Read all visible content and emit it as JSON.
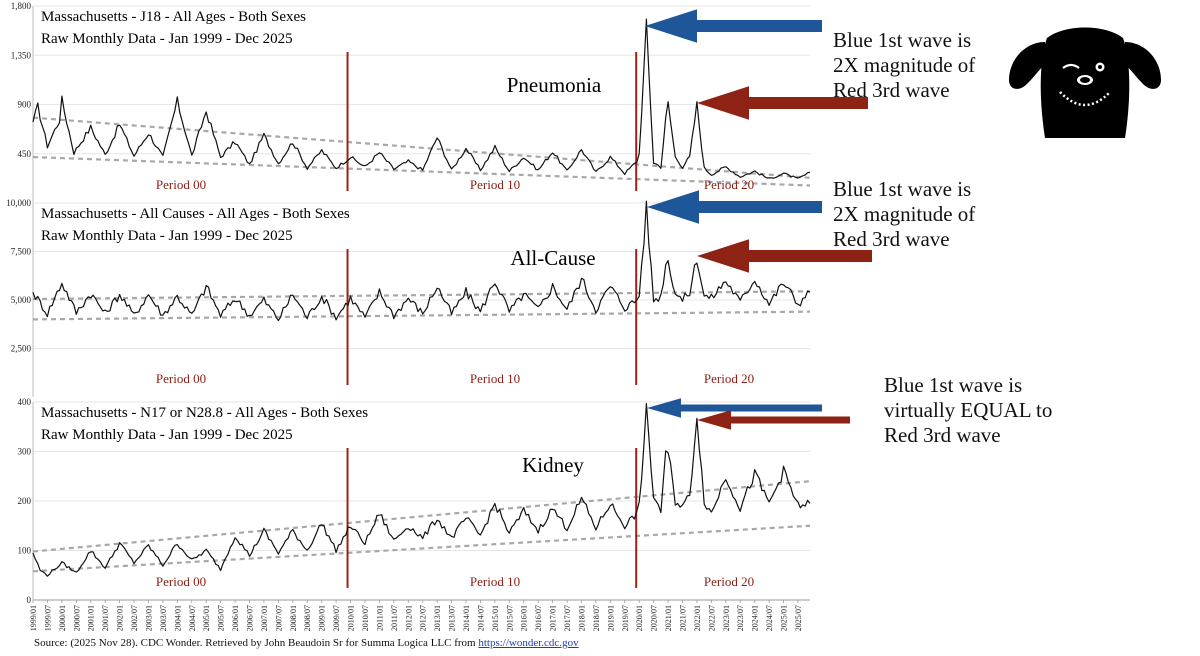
{
  "colors": {
    "series": "#111111",
    "trend": "#a8a8a8",
    "period_line": "#9b2316",
    "period_label": "#8b1e13",
    "grid": "#e6e6e6",
    "arrow_blue": "#1f5699",
    "arrow_red": "#8e2214"
  },
  "source": {
    "prefix": "Source: (2025 Nov 28). CDC Wonder. Retrieved by John Beaudoin Sr for Summa Logica LLC from ",
    "link": "https://wonder.cdc.gov"
  },
  "mascot": {
    "icon": "dog-face-icon"
  },
  "chart_data": [
    {
      "type": "line",
      "title": "Massachusetts - J18 - All Ages - Both Sexes",
      "subtitle": "Raw Monthly Data - Jan 1999 - Dec 2025",
      "label": "Pneumonia",
      "ylim": [
        0,
        1800
      ],
      "yticks": [
        "1,800",
        "1,350",
        "900",
        "450"
      ],
      "grid": true,
      "period_labels": [
        "Period 00",
        "Period 10",
        "Period 20"
      ],
      "period_boundaries": [
        "2010/01",
        "2020/01"
      ],
      "trend_lines": [
        {
          "from": [
            "1999/01",
            780
          ],
          "to": [
            "2025/12",
            230
          ]
        },
        {
          "from": [
            "1999/01",
            420
          ],
          "to": [
            "2025/12",
            160
          ]
        }
      ],
      "anchors": [
        [
          "1999/01",
          740
        ],
        [
          "1999/03",
          880
        ],
        [
          "1999/07",
          520
        ],
        [
          "1999/12",
          760
        ],
        [
          "2000/01",
          940
        ],
        [
          "2000/06",
          460
        ],
        [
          "2001/01",
          690
        ],
        [
          "2001/07",
          440
        ],
        [
          "2002/01",
          720
        ],
        [
          "2002/07",
          430
        ],
        [
          "2003/01",
          640
        ],
        [
          "2003/07",
          420
        ],
        [
          "2004/01",
          930
        ],
        [
          "2004/07",
          430
        ],
        [
          "2005/01",
          840
        ],
        [
          "2005/07",
          420
        ],
        [
          "2006/01",
          560
        ],
        [
          "2006/07",
          350
        ],
        [
          "2007/01",
          620
        ],
        [
          "2007/07",
          360
        ],
        [
          "2008/01",
          560
        ],
        [
          "2008/07",
          320
        ],
        [
          "2009/01",
          480
        ],
        [
          "2009/07",
          320
        ],
        [
          "2010/01",
          420
        ],
        [
          "2010/07",
          330
        ],
        [
          "2011/01",
          460
        ],
        [
          "2011/07",
          310
        ],
        [
          "2012/01",
          380
        ],
        [
          "2012/07",
          300
        ],
        [
          "2013/01",
          600
        ],
        [
          "2013/07",
          300
        ],
        [
          "2014/01",
          500
        ],
        [
          "2014/07",
          300
        ],
        [
          "2015/01",
          510
        ],
        [
          "2015/07",
          290
        ],
        [
          "2016/01",
          420
        ],
        [
          "2016/07",
          300
        ],
        [
          "2017/01",
          470
        ],
        [
          "2017/07",
          290
        ],
        [
          "2018/01",
          490
        ],
        [
          "2018/07",
          280
        ],
        [
          "2019/01",
          420
        ],
        [
          "2019/07",
          270
        ],
        [
          "2019/12",
          380
        ],
        [
          "2020/01",
          450
        ],
        [
          "2020/04",
          1620
        ],
        [
          "2020/07",
          370
        ],
        [
          "2020/10",
          330
        ],
        [
          "2020/12",
          760
        ],
        [
          "2021/01",
          910
        ],
        [
          "2021/04",
          420
        ],
        [
          "2021/07",
          330
        ],
        [
          "2021/10",
          420
        ],
        [
          "2022/01",
          900
        ],
        [
          "2022/04",
          320
        ],
        [
          "2022/07",
          260
        ],
        [
          "2023/01",
          330
        ],
        [
          "2023/07",
          240
        ],
        [
          "2024/01",
          290
        ],
        [
          "2024/07",
          220
        ],
        [
          "2025/01",
          270
        ],
        [
          "2025/07",
          220
        ],
        [
          "2025/12",
          280
        ]
      ]
    },
    {
      "type": "line",
      "title": "Massachusetts - All Causes - All Ages - Both Sexes",
      "subtitle": "Raw Monthly Data - Jan 1999 - Dec 2025",
      "label": "All-Cause",
      "ylim": [
        0,
        10000
      ],
      "yticks": [
        "10,000",
        "7,500",
        "5,000",
        "2,500"
      ],
      "grid": true,
      "period_labels": [
        "Period 00",
        "Period 10",
        "Period 20"
      ],
      "period_boundaries": [
        "2010/01",
        "2020/01"
      ],
      "trend_lines": [
        {
          "from": [
            "1999/01",
            5050
          ],
          "to": [
            "2025/12",
            5450
          ]
        },
        {
          "from": [
            "1999/01",
            4000
          ],
          "to": [
            "2025/12",
            4400
          ]
        }
      ],
      "anchors": [
        [
          "1999/01",
          5400
        ],
        [
          "1999/07",
          4300
        ],
        [
          "2000/01",
          5900
        ],
        [
          "2000/07",
          4350
        ],
        [
          "2001/01",
          5350
        ],
        [
          "2001/07",
          4300
        ],
        [
          "2002/01",
          5300
        ],
        [
          "2002/07",
          4200
        ],
        [
          "2003/01",
          5300
        ],
        [
          "2003/07",
          4200
        ],
        [
          "2004/01",
          5200
        ],
        [
          "2004/07",
          4200
        ],
        [
          "2005/01",
          5700
        ],
        [
          "2005/07",
          4200
        ],
        [
          "2006/01",
          5100
        ],
        [
          "2006/07",
          4200
        ],
        [
          "2007/01",
          5000
        ],
        [
          "2007/07",
          4000
        ],
        [
          "2008/01",
          5300
        ],
        [
          "2008/07",
          4100
        ],
        [
          "2009/01",
          5200
        ],
        [
          "2009/07",
          4100
        ],
        [
          "2010/01",
          5100
        ],
        [
          "2010/07",
          4100
        ],
        [
          "2011/01",
          5400
        ],
        [
          "2011/07",
          4200
        ],
        [
          "2012/01",
          5100
        ],
        [
          "2012/07",
          4300
        ],
        [
          "2013/01",
          5700
        ],
        [
          "2013/07",
          4300
        ],
        [
          "2014/01",
          5400
        ],
        [
          "2014/07",
          4400
        ],
        [
          "2015/01",
          6000
        ],
        [
          "2015/07",
          4400
        ],
        [
          "2016/01",
          5300
        ],
        [
          "2016/07",
          4500
        ],
        [
          "2017/01",
          5700
        ],
        [
          "2017/07",
          4500
        ],
        [
          "2018/01",
          6100
        ],
        [
          "2018/07",
          4500
        ],
        [
          "2019/01",
          5700
        ],
        [
          "2019/07",
          4600
        ],
        [
          "2019/12",
          5000
        ],
        [
          "2020/01",
          5300
        ],
        [
          "2020/04",
          9700
        ],
        [
          "2020/07",
          5000
        ],
        [
          "2020/10",
          5200
        ],
        [
          "2020/12",
          6900
        ],
        [
          "2021/01",
          7000
        ],
        [
          "2021/04",
          5400
        ],
        [
          "2021/07",
          5000
        ],
        [
          "2021/10",
          5400
        ],
        [
          "2022/01",
          7200
        ],
        [
          "2022/04",
          5200
        ],
        [
          "2022/07",
          5100
        ],
        [
          "2023/01",
          6000
        ],
        [
          "2023/07",
          4900
        ],
        [
          "2024/01",
          6100
        ],
        [
          "2024/07",
          4800
        ],
        [
          "2025/01",
          5900
        ],
        [
          "2025/07",
          4800
        ],
        [
          "2025/12",
          5400
        ]
      ]
    },
    {
      "type": "line",
      "title": "Massachusetts - N17 or N28.8 - All Ages - Both Sexes",
      "subtitle": "Raw Monthly Data - Jan 1999 - Dec 2025",
      "label": "Kidney",
      "ylim": [
        0,
        400
      ],
      "yticks": [
        "400",
        "300",
        "200",
        "100",
        "0"
      ],
      "grid": true,
      "period_labels": [
        "Period 00",
        "Period 10",
        "Period 20"
      ],
      "period_boundaries": [
        "2010/01",
        "2020/01"
      ],
      "trend_lines": [
        {
          "from": [
            "1999/01",
            98
          ],
          "to": [
            "2025/12",
            240
          ]
        },
        {
          "from": [
            "1999/01",
            58
          ],
          "to": [
            "2025/12",
            150
          ]
        }
      ],
      "anchors": [
        [
          "1999/01",
          95
        ],
        [
          "1999/04",
          60
        ],
        [
          "1999/07",
          50
        ],
        [
          "2000/01",
          75
        ],
        [
          "2000/07",
          55
        ],
        [
          "2001/01",
          100
        ],
        [
          "2001/07",
          65
        ],
        [
          "2002/01",
          115
        ],
        [
          "2002/07",
          75
        ],
        [
          "2003/01",
          110
        ],
        [
          "2003/07",
          70
        ],
        [
          "2004/01",
          115
        ],
        [
          "2004/07",
          80
        ],
        [
          "2005/01",
          100
        ],
        [
          "2005/07",
          62
        ],
        [
          "2006/01",
          130
        ],
        [
          "2006/07",
          90
        ],
        [
          "2007/01",
          140
        ],
        [
          "2007/07",
          95
        ],
        [
          "2008/01",
          140
        ],
        [
          "2008/07",
          100
        ],
        [
          "2009/01",
          155
        ],
        [
          "2009/07",
          100
        ],
        [
          "2010/01",
          150
        ],
        [
          "2010/07",
          115
        ],
        [
          "2011/01",
          175
        ],
        [
          "2011/07",
          120
        ],
        [
          "2012/01",
          150
        ],
        [
          "2012/07",
          125
        ],
        [
          "2013/01",
          165
        ],
        [
          "2013/07",
          125
        ],
        [
          "2014/01",
          165
        ],
        [
          "2014/07",
          130
        ],
        [
          "2015/01",
          195
        ],
        [
          "2015/07",
          135
        ],
        [
          "2016/01",
          180
        ],
        [
          "2016/07",
          140
        ],
        [
          "2017/01",
          185
        ],
        [
          "2017/07",
          145
        ],
        [
          "2018/01",
          205
        ],
        [
          "2018/07",
          145
        ],
        [
          "2019/01",
          195
        ],
        [
          "2019/07",
          150
        ],
        [
          "2019/12",
          175
        ],
        [
          "2020/01",
          190
        ],
        [
          "2020/04",
          380
        ],
        [
          "2020/07",
          210
        ],
        [
          "2020/10",
          180
        ],
        [
          "2020/12",
          290
        ],
        [
          "2021/01",
          300
        ],
        [
          "2021/04",
          200
        ],
        [
          "2021/07",
          190
        ],
        [
          "2021/10",
          210
        ],
        [
          "2022/01",
          375
        ],
        [
          "2022/04",
          200
        ],
        [
          "2022/07",
          175
        ],
        [
          "2023/01",
          250
        ],
        [
          "2023/07",
          185
        ],
        [
          "2024/01",
          255
        ],
        [
          "2024/07",
          195
        ],
        [
          "2025/01",
          260
        ],
        [
          "2025/07",
          190
        ],
        [
          "2025/12",
          195
        ]
      ]
    }
  ],
  "x_axis": {
    "ticks": [
      "1999/01",
      "1999/07",
      "2000/01",
      "2000/07",
      "2001/01",
      "2001/07",
      "2002/01",
      "2002/07",
      "2003/01",
      "2003/07",
      "2004/01",
      "2004/07",
      "2005/01",
      "2005/07",
      "2006/01",
      "2006/07",
      "2007/01",
      "2007/07",
      "2008/01",
      "2008/07",
      "2009/01",
      "2009/07",
      "2010/01",
      "2010/07",
      "2011/01",
      "2011/07",
      "2012/01",
      "2012/07",
      "2013/01",
      "2013/07",
      "2014/01",
      "2014/07",
      "2015/01",
      "2015/07",
      "2016/01",
      "2016/07",
      "2017/01",
      "2017/07",
      "2018/01",
      "2018/07",
      "2019/01",
      "2019/07",
      "2020/01",
      "2020/07",
      "2021/01",
      "2021/07",
      "2022/01",
      "2022/07",
      "2023/01",
      "2023/07",
      "2024/01",
      "2024/07",
      "2025/01",
      "2025/07"
    ]
  },
  "annotations": [
    {
      "lines": [
        "Blue 1st wave is",
        "2X magnitude of",
        "Red 3rd wave"
      ]
    },
    {
      "lines": [
        "Blue 1st wave is",
        "2X magnitude of",
        "Red 3rd wave"
      ]
    },
    {
      "lines": [
        "Blue 1st wave is",
        "virtually EQUAL to",
        "Red 3rd wave"
      ]
    }
  ]
}
